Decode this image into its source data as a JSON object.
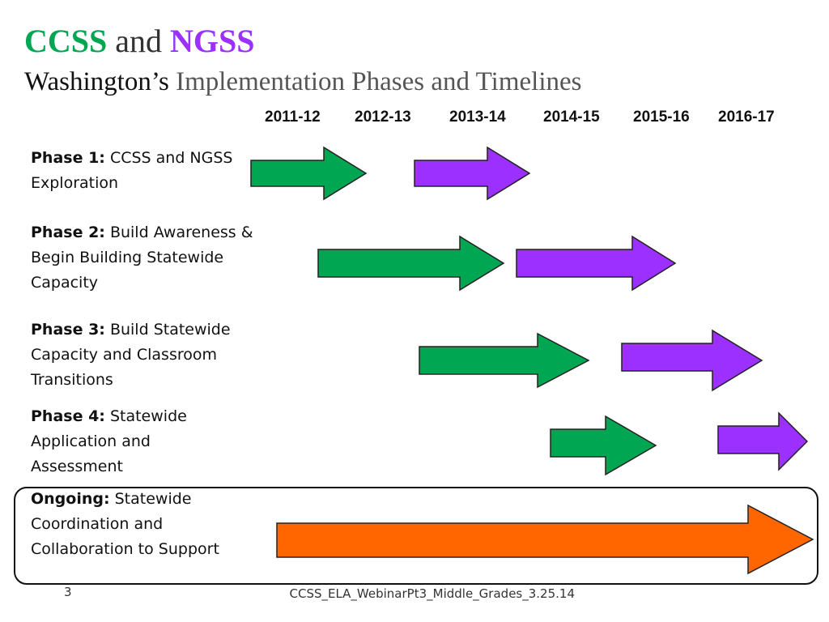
{
  "title": {
    "ccss": "CCSS",
    "and": "and",
    "ngss": "NGSS",
    "line2_prefix": "Washington’s",
    "line2_rest": "Implementation Phases and Timelines"
  },
  "years": [
    "2011-12",
    "2012-13",
    "2013-14",
    "2014-15",
    "2015-16",
    "2016-17"
  ],
  "phases": [
    {
      "label": "Phase 1:",
      "text": "CCSS and NGSS Exploration"
    },
    {
      "label": "Phase 2:",
      "text": "Build Awareness & Begin Building Statewide Capacity"
    },
    {
      "label": "Phase 3:",
      "text": "Build Statewide Capacity and Classroom Transitions"
    },
    {
      "label": "Phase 4:",
      "text": "Statewide Application and Assessment"
    },
    {
      "label": "Ongoing:",
      "text": "Statewide Coordination and Collaboration to Support"
    }
  ],
  "colors": {
    "ccss": "#00a651",
    "ngss": "#9b30ff",
    "ongoing": "#ff6600"
  },
  "footer": {
    "slide_number": "3",
    "filename": "CCSS_ELA_WebinarPt3_Middle_Grades_3.25.14"
  }
}
